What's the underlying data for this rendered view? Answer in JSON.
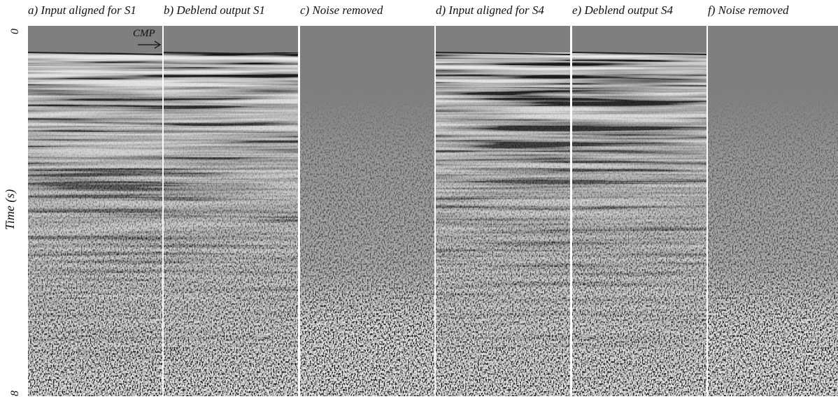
{
  "panels": [
    {
      "title": "a) Input aligned for S1"
    },
    {
      "title": "b) Deblend output S1"
    },
    {
      "title": "c) Noise removed"
    },
    {
      "title": "d) Input aligned for S4"
    },
    {
      "title": "e) Deblend output S4"
    },
    {
      "title": "f) Noise removed"
    }
  ],
  "y_axis": {
    "label": "Time (s)",
    "ticks": [
      "0",
      "8"
    ]
  },
  "annotation": "CMP"
}
